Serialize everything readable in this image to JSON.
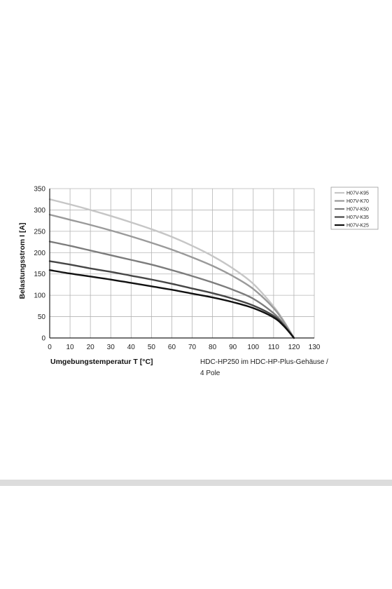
{
  "colors": {
    "grid": "#b4b4b4",
    "axis": "#222222",
    "band": "#dcdcdc"
  },
  "chart_data": {
    "type": "line",
    "title": "",
    "xlabel": "Umgebungstemperatur T [°C]",
    "ylabel": "Belastungsstrom I [A]",
    "caption_lines": [
      "HDC-HP250 im HDC-HP-Plus-Gehäuse /",
      "4 Pole"
    ],
    "xlim": [
      0,
      130
    ],
    "ylim": [
      0,
      350
    ],
    "x_ticks": [
      0,
      10,
      20,
      30,
      40,
      50,
      60,
      70,
      80,
      90,
      100,
      110,
      120,
      130
    ],
    "y_ticks": [
      0,
      50,
      100,
      150,
      200,
      250,
      300,
      350
    ],
    "grid": true,
    "legend_position": "top-right",
    "series": [
      {
        "name": "H07V-K95",
        "color": "#c6c6c6",
        "x": [
          0,
          10,
          20,
          30,
          40,
          50,
          60,
          70,
          80,
          90,
          100,
          110,
          115,
          120
        ],
        "y": [
          325,
          313,
          300,
          286,
          271,
          255,
          237,
          216,
          192,
          163,
          127,
          74,
          40,
          0
        ]
      },
      {
        "name": "H07V-K70",
        "color": "#9a9a9a",
        "x": [
          0,
          10,
          20,
          30,
          40,
          50,
          60,
          70,
          80,
          90,
          100,
          110,
          115,
          120
        ],
        "y": [
          289,
          277,
          265,
          252,
          238,
          223,
          207,
          189,
          169,
          145,
          115,
          70,
          38,
          0
        ]
      },
      {
        "name": "H07V-K50",
        "color": "#7c7c7c",
        "x": [
          0,
          10,
          20,
          30,
          40,
          50,
          60,
          70,
          80,
          90,
          100,
          110,
          115,
          120
        ],
        "y": [
          226,
          216,
          205,
          194,
          183,
          172,
          159,
          145,
          130,
          113,
          92,
          58,
          32,
          0
        ]
      },
      {
        "name": "H07V-K35",
        "color": "#464646",
        "x": [
          0,
          10,
          20,
          30,
          40,
          50,
          60,
          70,
          80,
          90,
          100,
          110,
          115,
          120
        ],
        "y": [
          180,
          172,
          163,
          155,
          146,
          137,
          127,
          116,
          105,
          92,
          76,
          52,
          30,
          0
        ]
      },
      {
        "name": "H07V-K25",
        "color": "#101010",
        "x": [
          0,
          10,
          20,
          30,
          40,
          50,
          60,
          70,
          80,
          90,
          100,
          110,
          115,
          120
        ],
        "y": [
          159,
          151,
          144,
          137,
          129,
          121,
          113,
          104,
          95,
          84,
          70,
          48,
          28,
          0
        ]
      }
    ]
  }
}
